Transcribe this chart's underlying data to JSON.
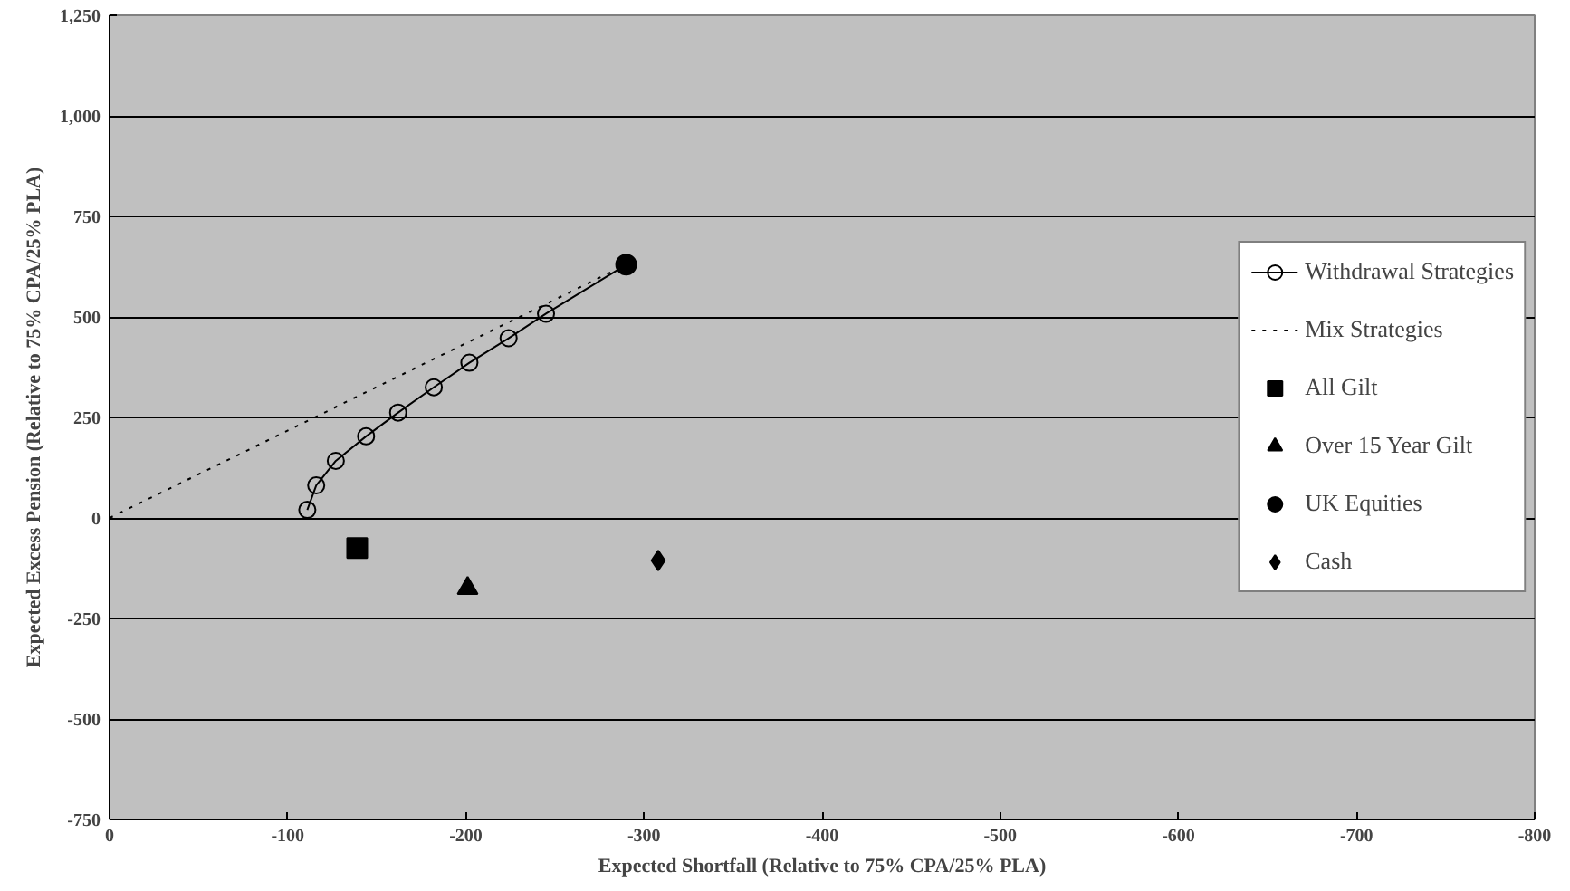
{
  "chart_data": {
    "type": "scatter",
    "xlabel": "Expected Shortfall (Relative to 75% CPA/25% PLA)",
    "ylabel": "Expected Excess Pension (Relative to 75% CPA/25% PLA)",
    "xlim": [
      0,
      -800
    ],
    "ylim": [
      -750,
      1250
    ],
    "xticks": [
      0,
      -100,
      -200,
      -300,
      -400,
      -500,
      -600,
      -700,
      -800
    ],
    "yticks": [
      {
        "value": -750,
        "label": "-750"
      },
      {
        "value": -500,
        "label": "-500"
      },
      {
        "value": -250,
        "label": "-250"
      },
      {
        "value": 0,
        "label": "0"
      },
      {
        "value": 250,
        "label": "250"
      },
      {
        "value": 500,
        "label": "500"
      },
      {
        "value": 750,
        "label": "750"
      },
      {
        "value": 1000,
        "label": "1,000"
      },
      {
        "value": 1250,
        "label": "1,250"
      }
    ],
    "grid": "y",
    "legend": "right",
    "series": [
      {
        "name": "Withdrawal Strategies",
        "type": "line",
        "marker": "circle",
        "line_style": "solid",
        "color": "#000000",
        "x": [
          -111,
          -116,
          -127,
          -144,
          -162,
          -182,
          -202,
          -224,
          -245,
          -290
        ],
        "values": [
          20,
          81,
          142,
          203,
          262,
          325,
          386,
          447,
          508,
          630
        ]
      },
      {
        "name": "Mix Strategies",
        "type": "line",
        "marker": "none",
        "line_style": "dotted",
        "color": "#000000",
        "x": [
          0,
          -290
        ],
        "values": [
          0,
          630
        ]
      },
      {
        "name": "All Gilt",
        "marker": "square",
        "color": "#000000",
        "x": [
          -139
        ],
        "values": [
          -75
        ]
      },
      {
        "name": "Over 15 Year Gilt",
        "marker": "triangle",
        "color": "#000000",
        "x": [
          -201
        ],
        "values": [
          -175
        ]
      },
      {
        "name": "UK Equities",
        "marker": "circle",
        "color": "#000000",
        "x": [
          -290
        ],
        "values": [
          630
        ]
      },
      {
        "name": "Cash",
        "marker": "diamond",
        "color": "#000000",
        "x": [
          -308
        ],
        "values": [
          -106
        ]
      }
    ]
  }
}
